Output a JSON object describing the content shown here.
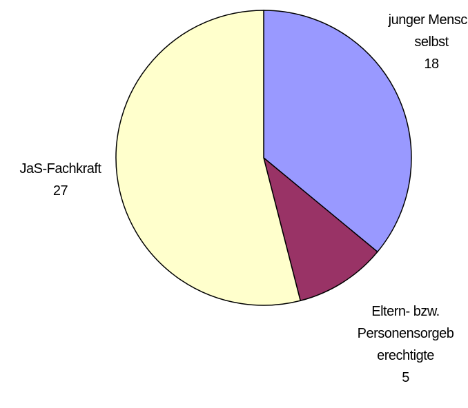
{
  "chart_data": {
    "type": "pie",
    "categories": [
      "junger Mensch selbst",
      "Eltern- bzw. Personensorgeberechtigte",
      "JaS-Fachkraft"
    ],
    "values": [
      18,
      5,
      27
    ],
    "colors": [
      "#9999ff",
      "#993366",
      "#ffffcc"
    ]
  }
}
